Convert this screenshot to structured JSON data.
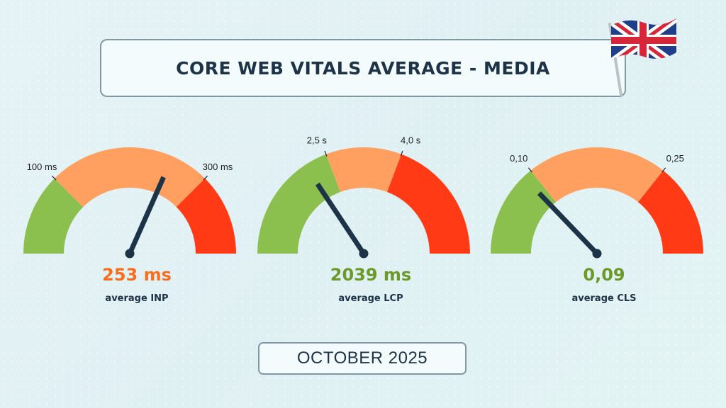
{
  "title": "CORE WEB VITALS AVERAGE - MEDIA",
  "date_label": "OCTOBER 2025",
  "flag_icon": "uk-flag-icon",
  "colors": {
    "good": "#8bc04f",
    "needs_improvement": "#ffa060",
    "poor": "#ff3a14",
    "needle": "#1c3348",
    "value_orange": "#f96d1f",
    "value_green": "#6c9a2a"
  },
  "chart_data": [
    {
      "type": "gauge",
      "metric": "INP",
      "value": 253,
      "value_label": "253 ms",
      "caption": "average INP",
      "thresholds": [
        100,
        300
      ],
      "threshold_labels": [
        "100 ms",
        "300 ms"
      ],
      "range": [
        0,
        400
      ],
      "status": "needs_improvement"
    },
    {
      "type": "gauge",
      "metric": "LCP",
      "value": 2039,
      "value_label": "2039 ms",
      "caption": "average LCP",
      "thresholds": [
        2500,
        4000
      ],
      "threshold_labels": [
        "2,5 s",
        "4,0 s"
      ],
      "range": [
        0,
        6500
      ],
      "status": "good"
    },
    {
      "type": "gauge",
      "metric": "CLS",
      "value": 0.09,
      "value_label": "0,09",
      "caption": "average CLS",
      "thresholds": [
        0.1,
        0.25
      ],
      "threshold_labels": [
        "0,10",
        "0,25"
      ],
      "range": [
        0,
        0.35
      ],
      "status": "good"
    }
  ]
}
